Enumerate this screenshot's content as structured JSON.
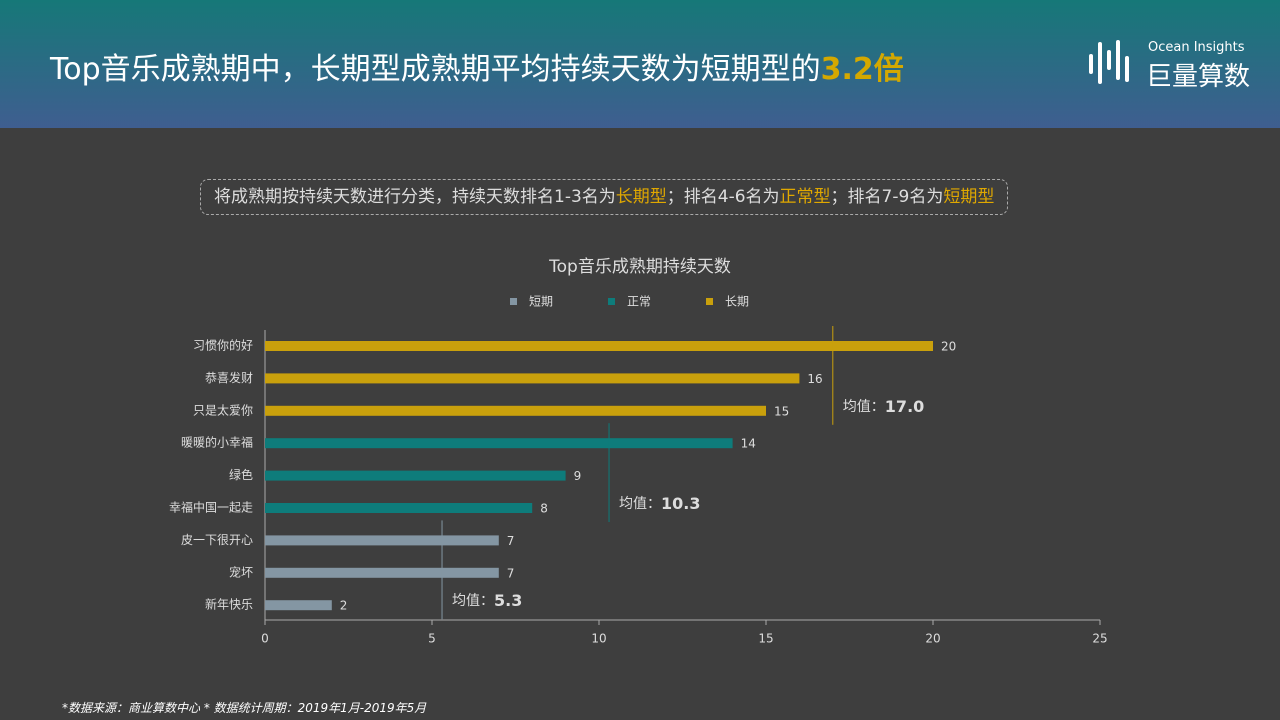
{
  "header": {
    "title": "Top音乐成熟期中，长期型成熟期平均持续天数为短期型的",
    "highlight": "3.2倍"
  },
  "logo": {
    "en": "Ocean Insights",
    "cn": "巨量算数"
  },
  "note": [
    "将成熟期按持续天数进行分类，持续天数排名1-3名为",
    "长期型",
    "；排名4-6名为",
    "正常型",
    "；排名7-9名为",
    "短期型"
  ],
  "chart_data": {
    "type": "hbar",
    "title": "Top音乐成熟期持续天数",
    "categories": [
      "习惯你的好",
      "恭喜发财",
      "只是太爱你",
      "暖暖的小幸福",
      "绿色",
      "幸福中国一起走",
      "皮一下很开心",
      "宠坏",
      "新年快乐"
    ],
    "series": [
      {
        "name": "短期",
        "color": "#8496a3",
        "values": [
          null,
          null,
          null,
          null,
          null,
          null,
          7,
          7,
          2
        ],
        "mean": {
          "value": 5.3,
          "label": "5.3"
        }
      },
      {
        "name": "正常",
        "color": "#0e7c7b",
        "values": [
          null,
          null,
          null,
          14,
          9,
          8,
          null,
          null,
          null
        ],
        "mean": {
          "value": 10.3,
          "label": "10.3"
        }
      },
      {
        "name": "长期",
        "color": "#c9a00c",
        "values": [
          20,
          16,
          15,
          null,
          null,
          null,
          null,
          null,
          null
        ],
        "mean": {
          "value": 17,
          "label": "17.0"
        }
      }
    ],
    "mean_prefix": "均值：",
    "xlim": [
      0,
      25
    ],
    "xticks": [
      0,
      5,
      10,
      15,
      20,
      25
    ],
    "legend": "top"
  },
  "footer": "*数据来源：商业算数中心 * 数据统计周期：2019年1月-2019年5月"
}
